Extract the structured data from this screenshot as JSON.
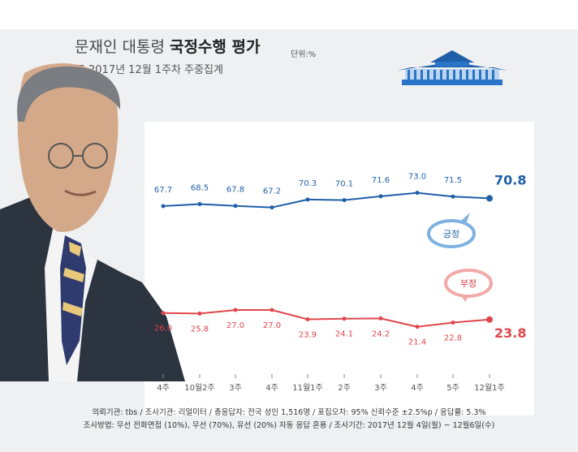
{
  "header": {
    "title_prefix": "문재인 대통령",
    "title_bold": "국정수행 평가",
    "unit": "단위:%",
    "subtitle": "2017년 12월 1주차 주중집계"
  },
  "footer": {
    "line1": "의뢰기관: tbs / 조사기관: 리얼미터 / 총응답자: 전국 성인 1,516명 / 표집오차: 95% 신뢰수준 ±2.5%p / 응답률: 5.3%",
    "line2": "조사방법: 무선 전화면접 (10%), 무선 (70%), 유선 (20%) 자동 응답 혼용 / 조사기간: 2017년 12월 4일(월) ~ 12월6일(수)"
  },
  "chart_data": {
    "type": "line",
    "categories": [
      "4주",
      "10월2주",
      "3주",
      "4주",
      "11월1주",
      "2주",
      "3주",
      "4주",
      "5주",
      "12월1주"
    ],
    "series": [
      {
        "name": "긍정",
        "values": [
          67.7,
          68.5,
          67.8,
          67.2,
          70.3,
          70.1,
          71.6,
          73.0,
          71.5,
          70.8
        ],
        "color": "#1f5fa8"
      },
      {
        "name": "부정",
        "values": [
          26.0,
          25.8,
          27.0,
          27.0,
          23.9,
          24.1,
          24.2,
          21.4,
          22.8,
          23.8
        ],
        "color": "#e0474c"
      }
    ],
    "labels": {
      "positive": [
        "67.7",
        "68.5",
        "67.8",
        "67.2",
        "70.3",
        "70.1",
        "71.6",
        "73.0",
        "71.5",
        "70.8"
      ],
      "negative": [
        "26.0",
        "25.8",
        "27.0",
        "27.0",
        "23.9",
        "24.1",
        "24.2",
        "21.4",
        "22.8",
        "23.8"
      ]
    },
    "title": "",
    "xlabel": "",
    "ylabel": "",
    "grid": false,
    "legend_style": "speech bubbles"
  }
}
